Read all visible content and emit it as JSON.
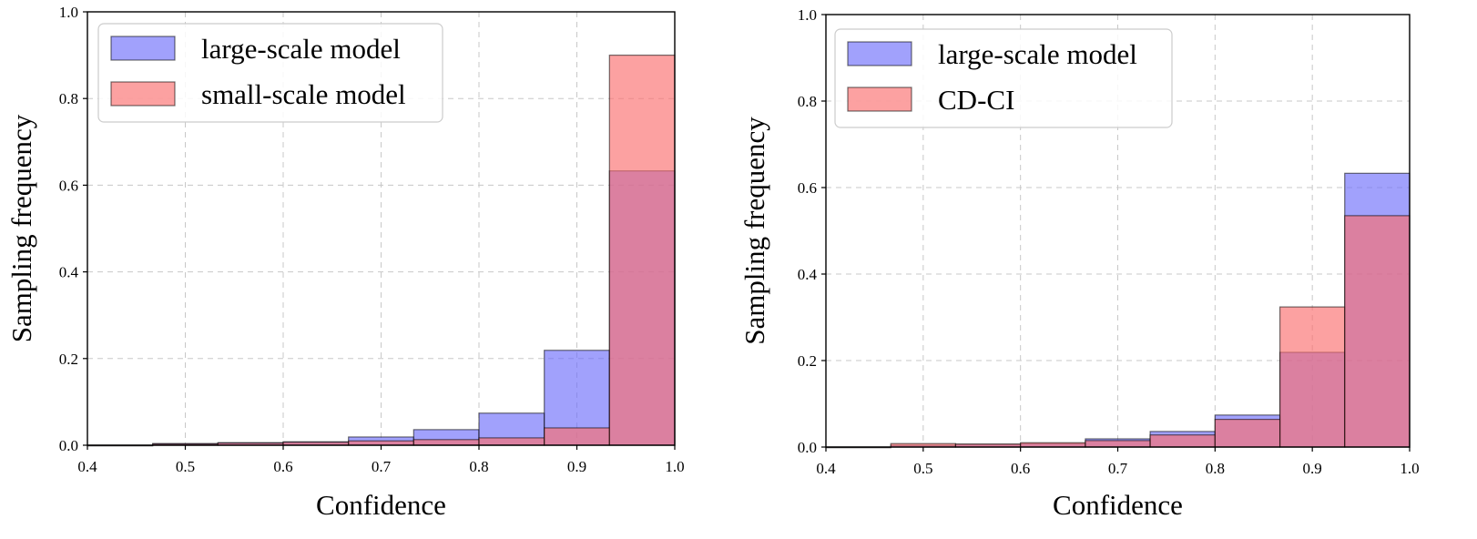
{
  "colors": {
    "large": "#6f6ffb",
    "small": "#fb6f6f",
    "background": "#ffffff"
  },
  "chart_data": [
    {
      "type": "bar",
      "title": "",
      "xlabel": "Confidence",
      "ylabel": "Sampling frequency",
      "xlim": [
        0.4,
        1.0
      ],
      "ylim": [
        0.0,
        1.0
      ],
      "xticks": [
        "0.4",
        "0.5",
        "0.6",
        "0.7",
        "0.8",
        "0.9",
        "1.0"
      ],
      "yticks": [
        "0.0",
        "0.2",
        "0.4",
        "0.6",
        "0.8",
        "1.0"
      ],
      "bin_edges": [
        0.4,
        0.4667,
        0.5333,
        0.6,
        0.6667,
        0.7333,
        0.8,
        0.8667,
        0.9333,
        1.0
      ],
      "grid": true,
      "legend_position": "top-left",
      "series": [
        {
          "name": "large-scale model",
          "color_key": "large",
          "values": [
            0.0,
            0.004,
            0.006,
            0.008,
            0.019,
            0.036,
            0.074,
            0.219,
            0.633
          ]
        },
        {
          "name": "small-scale model",
          "color_key": "small",
          "values": [
            0.0,
            0.003,
            0.005,
            0.007,
            0.01,
            0.013,
            0.017,
            0.04,
            0.9
          ]
        }
      ]
    },
    {
      "type": "bar",
      "title": "",
      "xlabel": "Confidence",
      "ylabel": "Sampling frequency",
      "xlim": [
        0.4,
        1.0
      ],
      "ylim": [
        0.0,
        1.0
      ],
      "xticks": [
        "0.4",
        "0.5",
        "0.6",
        "0.7",
        "0.8",
        "0.9",
        "1.0"
      ],
      "yticks": [
        "0.0",
        "0.2",
        "0.4",
        "0.6",
        "0.8",
        "1.0"
      ],
      "bin_edges": [
        0.4,
        0.4667,
        0.5333,
        0.6,
        0.6667,
        0.7333,
        0.8,
        0.8667,
        0.9333,
        1.0
      ],
      "grid": true,
      "legend_position": "top-left",
      "series": [
        {
          "name": "large-scale model",
          "color_key": "large",
          "values": [
            0.0,
            0.004,
            0.006,
            0.008,
            0.019,
            0.036,
            0.074,
            0.219,
            0.633
          ]
        },
        {
          "name": "CD-CI",
          "color_key": "small",
          "values": [
            0.0,
            0.008,
            0.007,
            0.01,
            0.015,
            0.028,
            0.064,
            0.324,
            0.535
          ]
        }
      ]
    }
  ]
}
